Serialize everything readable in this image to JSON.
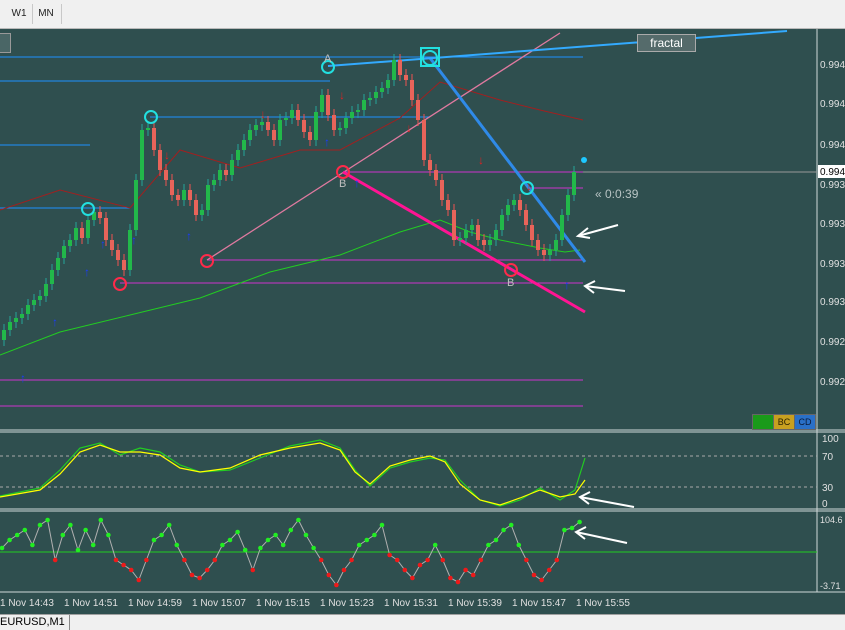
{
  "toolbar": {
    "timeframes": [
      "W1",
      "MN"
    ]
  },
  "tab": {
    "label": "EURUSD,M1"
  },
  "fractal_button": "fractal",
  "countdown": "« 0:0:39",
  "mini_buttons": [
    "BC",
    "CD"
  ],
  "price_axis": {
    "labels": [
      "0.994",
      "0.994",
      "0.994",
      "0.994",
      "0.993",
      "0.993",
      "0.993",
      "0.993",
      "0.992",
      "0.992"
    ],
    "current": "0.994"
  },
  "stoch_axis": [
    "100",
    "70",
    "30",
    "0"
  ],
  "rsi_axis": [
    "104.6",
    "-3.71"
  ],
  "time_axis": [
    "1 Nov 14:43",
    "1 Nov 14:51",
    "1 Nov 14:59",
    "1 Nov 15:07",
    "1 Nov 15:15",
    "1 Nov 15:23",
    "1 Nov 15:31",
    "1 Nov 15:39",
    "1 Nov 15:47",
    "1 Nov 15:55"
  ],
  "pattern_labels": {
    "a": "A",
    "b1": "B",
    "b2": "B"
  },
  "colors": {
    "bg": "#2f4f4f",
    "bull": "#26a69a",
    "bear": "#ef5350",
    "magenta": "#ff1493",
    "cyan": "#1e90ff"
  }
}
